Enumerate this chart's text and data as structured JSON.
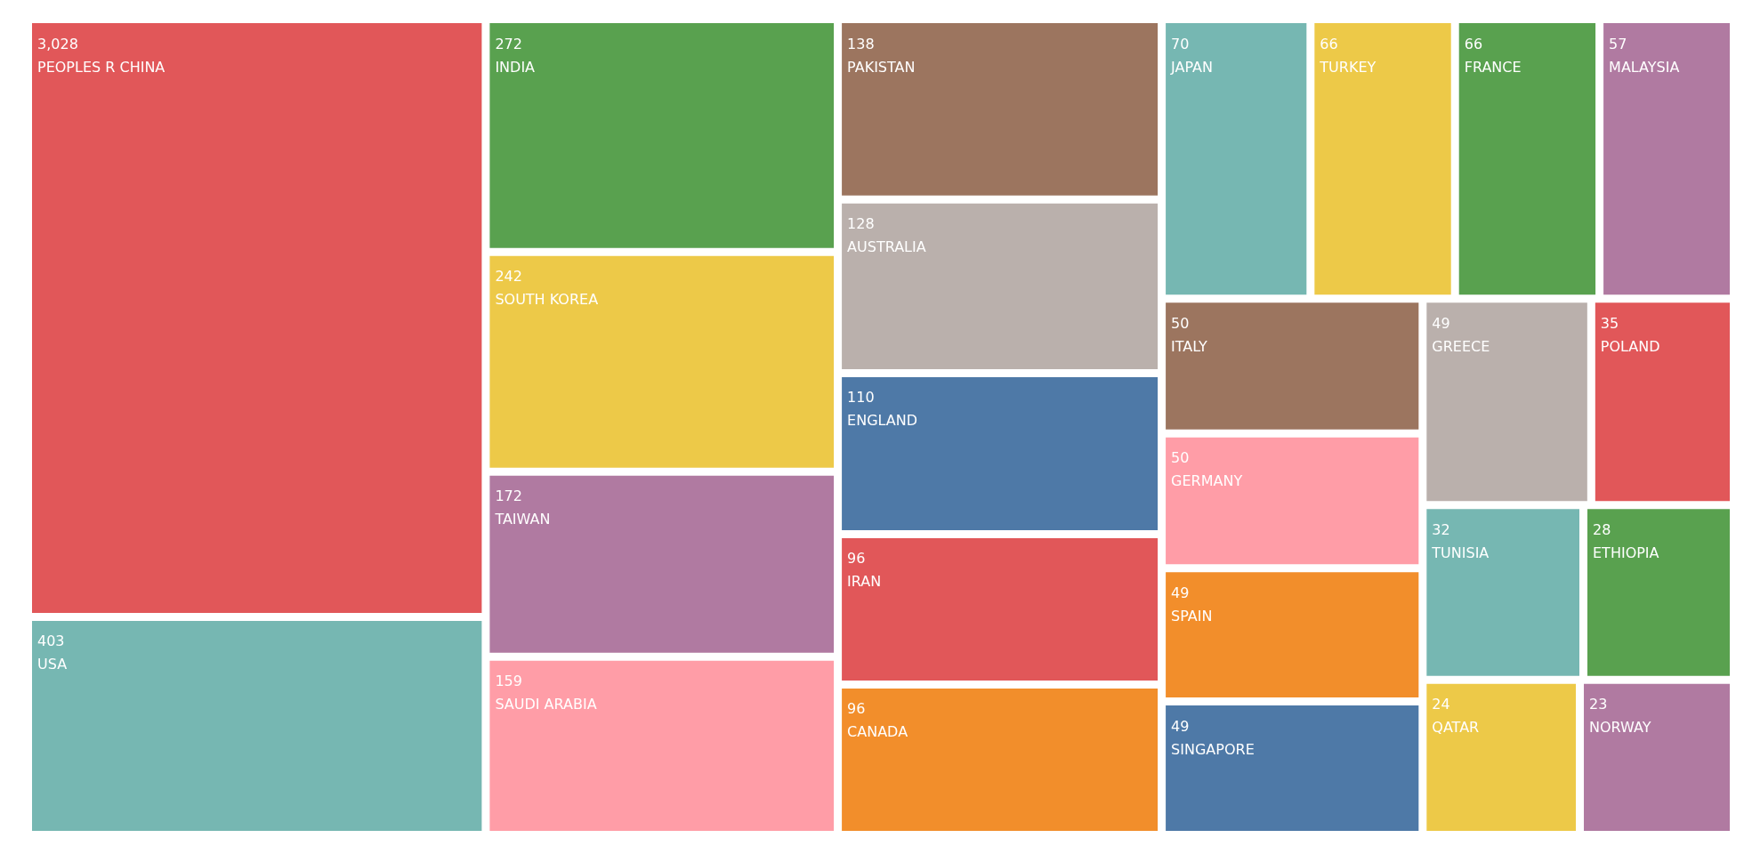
{
  "chart_data": {
    "type": "other",
    "categories": [
      "PEOPLES R CHINA",
      "USA",
      "INDIA",
      "SOUTH KOREA",
      "TAIWAN",
      "SAUDI ARABIA",
      "PAKISTAN",
      "AUSTRALIA",
      "ENGLAND",
      "CANADA",
      "IRAN",
      "JAPAN",
      "FRANCE",
      "TURKEY",
      "MALAYSIA",
      "GERMANY",
      "ITALY",
      "GREECE",
      "SINGAPORE",
      "SPAIN",
      "POLAND",
      "TUNISIA",
      "ETHIOPIA",
      "QATAR",
      "NORWAY"
    ],
    "values": [
      3028,
      403,
      272,
      242,
      172,
      159,
      138,
      128,
      110,
      96,
      96,
      70,
      66,
      66,
      57,
      50,
      50,
      49,
      49,
      49,
      35,
      32,
      28,
      24,
      23
    ],
    "value_labels": [
      "3,028",
      "403",
      "272",
      "242",
      "172",
      "159",
      "138",
      "128",
      "110",
      "96",
      "96",
      "70",
      "66",
      "66",
      "57",
      "50",
      "50",
      "49",
      "49",
      "49",
      "35",
      "32",
      "28",
      "24",
      "23"
    ],
    "colors": [
      "#e15759",
      "#76b7b2",
      "#59a14f",
      "#edc948",
      "#b07aa1",
      "#ff9da7",
      "#9c755f",
      "#bab0ac",
      "#4e79a7",
      "#f28e2b",
      "#e15759",
      "#76b7b2",
      "#59a14f",
      "#edc948",
      "#b07aa1",
      "#ff9da7",
      "#9c755f",
      "#bab0ac",
      "#4e79a7",
      "#f28e2b",
      "#e15759",
      "#76b7b2",
      "#59a14f",
      "#edc948",
      "#b07aa1"
    ]
  }
}
